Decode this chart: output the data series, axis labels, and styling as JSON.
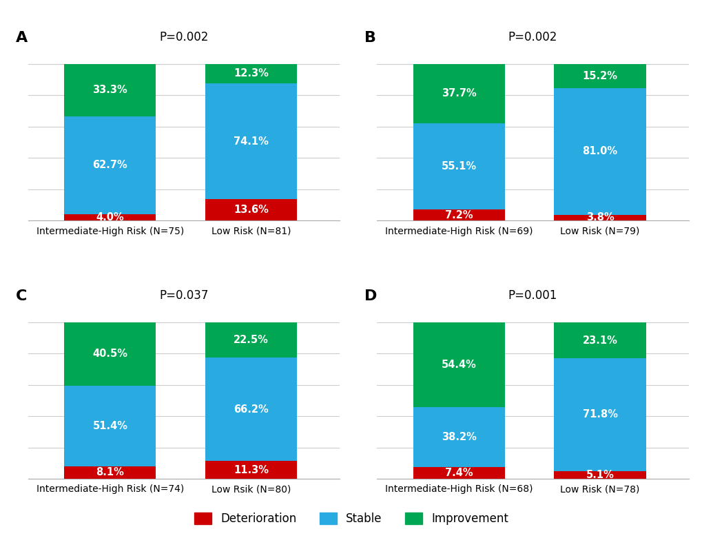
{
  "panels": [
    {
      "label": "A",
      "p_value": "P=0.002",
      "bars": [
        {
          "x_label": "Intermediate-High Risk (N=75)",
          "deterioration": 4.0,
          "stable": 62.7,
          "improvement": 33.3
        },
        {
          "x_label": "Low Risk (N=81)",
          "deterioration": 13.6,
          "stable": 74.1,
          "improvement": 12.3
        }
      ]
    },
    {
      "label": "B",
      "p_value": "P=0.002",
      "bars": [
        {
          "x_label": "Intermediate-High Risk (N=69)",
          "deterioration": 7.2,
          "stable": 55.1,
          "improvement": 37.7
        },
        {
          "x_label": "Low Risk (N=79)",
          "deterioration": 3.8,
          "stable": 81.0,
          "improvement": 15.2
        }
      ]
    },
    {
      "label": "C",
      "p_value": "P=0.037",
      "bars": [
        {
          "x_label": "Intermediate-High Risk (N=74)",
          "deterioration": 8.1,
          "stable": 51.4,
          "improvement": 40.5
        },
        {
          "x_label": "Low Rsik (N=80)",
          "deterioration": 11.3,
          "stable": 66.2,
          "improvement": 22.5
        }
      ]
    },
    {
      "label": "D",
      "p_value": "P=0.001",
      "bars": [
        {
          "x_label": "Intermediate-High Risk (N=68)",
          "deterioration": 7.4,
          "stable": 38.2,
          "improvement": 54.4
        },
        {
          "x_label": "Low Risk (N=78)",
          "deterioration": 5.1,
          "stable": 71.8,
          "improvement": 23.1
        }
      ]
    }
  ],
  "colors": {
    "deterioration": "#CC0000",
    "stable": "#29ABE2",
    "improvement": "#00A651"
  },
  "legend_labels": [
    "Deterioration",
    "Stable",
    "Improvement"
  ],
  "bar_width": 0.28,
  "x_positions": [
    0.25,
    0.68
  ],
  "xlim": [
    0.0,
    0.95
  ],
  "ylim": [
    0,
    110
  ],
  "yticks": [
    0,
    20,
    40,
    60,
    80,
    100
  ],
  "text_color": "white",
  "text_fontsize": 10.5,
  "label_fontsize": 10,
  "p_fontsize": 12,
  "panel_label_fontsize": 16,
  "bg_color": "white",
  "grid_color": "#cccccc"
}
